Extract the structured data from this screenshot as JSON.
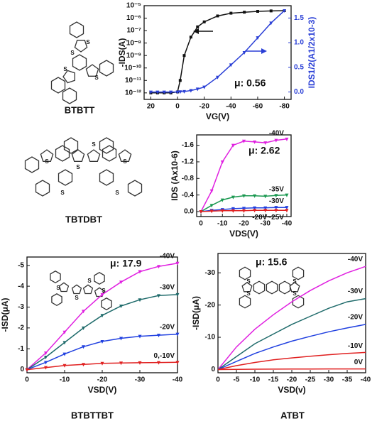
{
  "molecules": [
    {
      "name": "BTBTT",
      "atom": "S"
    },
    {
      "name": "TBTDBT",
      "atom": "S"
    },
    {
      "name": "BTBTTBT",
      "atom": "S"
    },
    {
      "name": "ATBT",
      "atom": "S"
    }
  ],
  "chart_data": [
    {
      "type": "line",
      "annotation": "μ: 0.56",
      "xlabel": "VG(V)",
      "ylabel": "-IDS(A)",
      "y2label": "IDS1/2(A1/2x10-3)",
      "yscale": "log",
      "x": [
        20,
        15,
        10,
        5,
        0,
        -2,
        -5,
        -10,
        -15,
        -20,
        -30,
        -40,
        -50,
        -60,
        -70,
        -80
      ],
      "series": [
        {
          "color": "#111111",
          "marker": "square",
          "values": [
            1e-12,
            1e-12,
            1e-12,
            1e-12,
            1.2e-12,
            1e-11,
            1e-09,
            3e-08,
            2e-07,
            5e-07,
            1.5e-06,
            2.5e-06,
            3e-06,
            3.5e-06,
            3.8e-06,
            4e-06
          ]
        },
        {
          "color": "#2a3fd6",
          "marker": "triangle",
          "axis": "y2",
          "values": [
            0,
            0,
            0,
            0,
            0,
            0.005,
            0.01,
            0.03,
            0.06,
            0.1,
            0.3,
            0.55,
            0.8,
            1.1,
            1.4,
            1.65
          ]
        }
      ],
      "xlim": [
        25,
        -85
      ],
      "xticks": [
        20,
        0,
        -20,
        -40,
        -60,
        -80
      ],
      "ylim": [
        3e-13,
        1e-05
      ],
      "yticks": [
        {
          "value": 1e-12,
          "label": "10⁻¹²"
        },
        {
          "value": 1e-11,
          "label": "10⁻¹¹"
        },
        {
          "value": 1e-10,
          "label": "10⁻¹⁰"
        },
        {
          "value": 1e-09,
          "label": "10⁻⁹"
        },
        {
          "value": 1e-08,
          "label": "10⁻⁸"
        },
        {
          "value": 1e-07,
          "label": "10⁻⁷"
        },
        {
          "value": 1e-06,
          "label": "10⁻⁶"
        },
        {
          "value": 1e-05,
          "label": "10⁻⁵"
        }
      ],
      "y2lim": [
        -0.15,
        1.75
      ],
      "y2ticks": [
        {
          "value": 0,
          "label": "0.0"
        },
        0.5,
        {
          "value": 1,
          "label": "1.0"
        },
        1.5
      ]
    },
    {
      "type": "line",
      "annotation": "μ: 2.62",
      "xlabel": "VDS(V)",
      "ylabel": "IDS (Ax10-6)",
      "x": [
        0,
        -5,
        -10,
        -15,
        -20,
        -25,
        -30,
        -35,
        -40
      ],
      "series": [
        {
          "name": "-40V",
          "color": "#e020e0",
          "marker": "triangle",
          "values": [
            0,
            -0.5,
            -1.2,
            -1.6,
            -1.7,
            -1.68,
            -1.66,
            -1.72,
            -1.75
          ]
        },
        {
          "name": "-35V",
          "color": "#1a9850",
          "marker": "triangle",
          "values": [
            0,
            -0.15,
            -0.28,
            -0.35,
            -0.38,
            -0.38,
            -0.37,
            -0.39,
            -0.4
          ]
        },
        {
          "name": "-30V",
          "color": "#2040e0",
          "marker": "triangle",
          "values": [
            0,
            -0.03,
            -0.05,
            -0.07,
            -0.08,
            -0.09,
            -0.09,
            -0.1,
            -0.1
          ]
        },
        {
          "name": "-20V~25V",
          "color": "#e02020",
          "marker": "triangle",
          "values": [
            0,
            -0.01,
            -0.02,
            -0.02,
            -0.02,
            -0.03,
            -0.03,
            -0.03,
            -0.03
          ]
        }
      ],
      "xlim": [
        2,
        -42
      ],
      "xticks": [
        0,
        -10,
        -20,
        -30,
        -40
      ],
      "ylim": [
        0.12,
        -1.85
      ],
      "yticks": [
        {
          "value": 0,
          "label": "0.0"
        },
        -0.4,
        -0.8,
        -1.2,
        -1.6
      ]
    },
    {
      "type": "line",
      "annotation": "μ: 17.9",
      "xlabel": "VSD(V)",
      "ylabel": "-ISD(μA)",
      "x": [
        0,
        -5,
        -10,
        -15,
        -20,
        -25,
        -30,
        -35,
        -40
      ],
      "series": [
        {
          "name": "-40V",
          "color": "#e020e0",
          "marker": "triangle",
          "values": [
            0,
            -0.8,
            -1.8,
            -2.8,
            -3.6,
            -4.2,
            -4.7,
            -4.95,
            -5.1
          ]
        },
        {
          "name": "-30V",
          "color": "#1f6b6b",
          "marker": "triangle",
          "values": [
            0,
            -0.6,
            -1.3,
            -2.0,
            -2.6,
            -3.05,
            -3.35,
            -3.55,
            -3.6
          ]
        },
        {
          "name": "-20V",
          "color": "#2040e0",
          "marker": "triangle",
          "values": [
            0,
            -0.35,
            -0.75,
            -1.1,
            -1.35,
            -1.5,
            -1.6,
            -1.65,
            -1.7
          ]
        },
        {
          "name": "0,-10V",
          "color": "#e02020",
          "marker": "triangle",
          "values": [
            0,
            -0.1,
            -0.2,
            -0.25,
            -0.3,
            -0.32,
            -0.33,
            -0.34,
            -0.35
          ]
        }
      ],
      "xlim": [
        0,
        -40
      ],
      "xticks": [
        0,
        -10,
        -20,
        -30,
        -40
      ],
      "ylim": [
        0.15,
        -5.4
      ],
      "yticks": [
        0,
        -1,
        -2,
        -3,
        -4,
        -5
      ]
    },
    {
      "type": "line",
      "annotation": "μ: 15.6",
      "xlabel": "VSD(v)",
      "ylabel": "-ISD(μA)",
      "x": [
        0,
        -5,
        -10,
        -15,
        -20,
        -25,
        -30,
        -35,
        -40
      ],
      "series": [
        {
          "name": "-40V",
          "color": "#e020e0",
          "values": [
            0,
            -7,
            -12.5,
            -17,
            -21,
            -24.5,
            -27.5,
            -30,
            -32
          ]
        },
        {
          "name": "-30V",
          "color": "#1f6b6b",
          "values": [
            0,
            -4,
            -8,
            -11,
            -14,
            -16.5,
            -19,
            -21,
            -22
          ]
        },
        {
          "name": "-20V",
          "color": "#2040e0",
          "values": [
            0,
            -2.5,
            -5,
            -7,
            -8.8,
            -10.3,
            -11.7,
            -12.9,
            -14
          ]
        },
        {
          "name": "-10V",
          "color": "#e02020",
          "values": [
            0,
            -1.2,
            -2.2,
            -3,
            -3.6,
            -4.1,
            -4.6,
            -5,
            -5.3
          ]
        },
        {
          "name": "0V",
          "color": "#e02020",
          "values": [
            0,
            -0.05,
            -0.1,
            -0.12,
            -0.15,
            -0.16,
            -0.18,
            -0.19,
            -0.2
          ]
        }
      ],
      "xlim": [
        0,
        -40
      ],
      "xticks": [
        0,
        -5,
        -10,
        -15,
        -20,
        -25,
        -30,
        -35,
        -40
      ],
      "ylim": [
        1,
        -36
      ],
      "yticks": [
        0,
        -10,
        -20,
        -30
      ]
    }
  ]
}
